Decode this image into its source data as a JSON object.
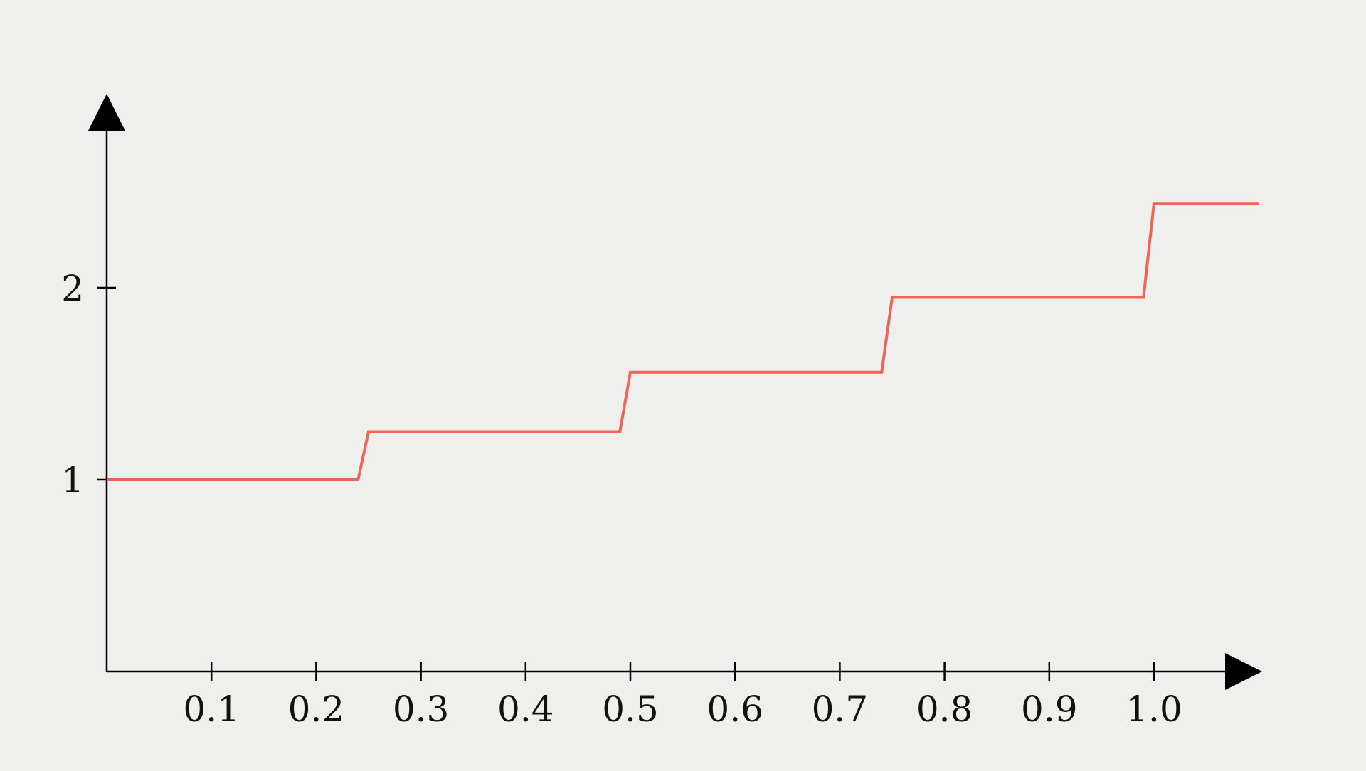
{
  "chart_data": {
    "type": "line",
    "title": "",
    "xlabel": "",
    "ylabel": "",
    "xlim": [
      0,
      1.1
    ],
    "ylim": [
      0,
      2.9
    ],
    "x_ticks": [
      0.1,
      0.2,
      0.3,
      0.4,
      0.5,
      0.6,
      0.7,
      0.8,
      0.9,
      1.0
    ],
    "x_tick_labels": [
      "0.1",
      "0.2",
      "0.3",
      "0.4",
      "0.5",
      "0.6",
      "0.7",
      "0.8",
      "0.9",
      "1.0"
    ],
    "y_ticks": [
      1,
      2
    ],
    "y_tick_labels": [
      "1",
      "2"
    ],
    "grid": false,
    "legend": "none",
    "series": [
      {
        "color": "#ee6555",
        "x": [
          0.0,
          0.24,
          0.25,
          0.49,
          0.5,
          0.74,
          0.75,
          0.99,
          1.0,
          1.1
        ],
        "y": [
          1.0,
          1.0,
          1.25,
          1.25,
          1.56,
          1.56,
          1.95,
          1.95,
          2.44,
          2.44
        ]
      }
    ],
    "axis_color": "#000000"
  }
}
